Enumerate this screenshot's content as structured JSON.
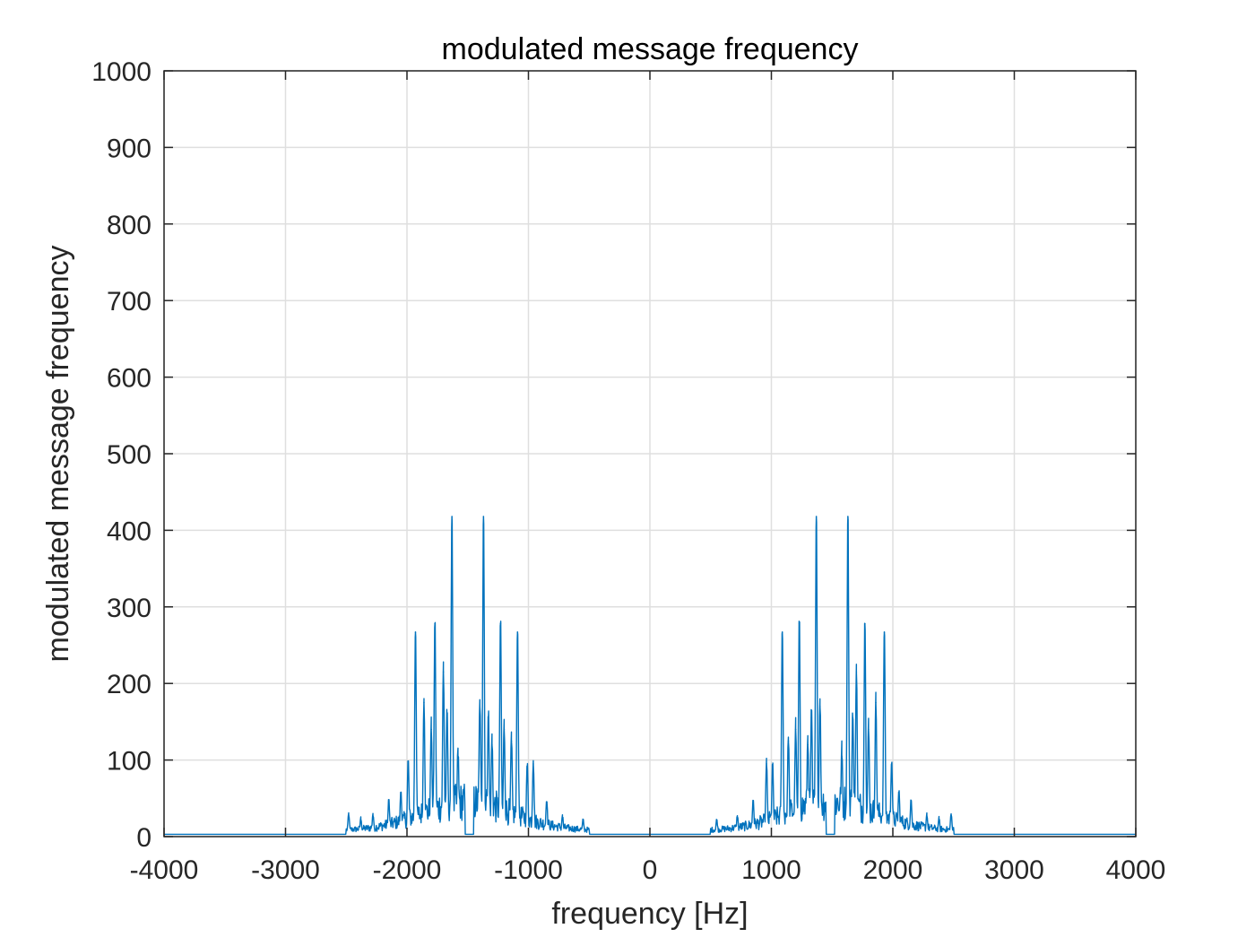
{
  "chart_data": {
    "type": "line",
    "title": "modulated message frequency",
    "xlabel": "frequency [Hz]",
    "ylabel": "modulated message frequency",
    "xlim": [
      -4000,
      4000
    ],
    "ylim": [
      0,
      1000
    ],
    "x_ticks": [
      -4000,
      -3000,
      -2000,
      -1000,
      0,
      1000,
      2000,
      3000,
      4000
    ],
    "y_ticks": [
      0,
      100,
      200,
      300,
      400,
      500,
      600,
      700,
      800,
      900,
      1000
    ],
    "x_tick_labels": [
      "-4000",
      "-3000",
      "-2000",
      "-1000",
      "0",
      "1000",
      "2000",
      "3000",
      "4000"
    ],
    "y_tick_labels": [
      "0",
      "100",
      "200",
      "300",
      "400",
      "500",
      "600",
      "700",
      "800",
      "900",
      "1000"
    ],
    "grid": true,
    "series": [
      {
        "color": "#0072BD",
        "baseline": 3,
        "band_edges": [
          [
            -2500,
            -500
          ],
          [
            500,
            2500
          ]
        ],
        "notch": [
          [
            -1520,
            -1450
          ],
          [
            1450,
            1520
          ]
        ],
        "peaks": [
          {
            "x": -2480,
            "y": 28
          },
          {
            "x": -2380,
            "y": 22
          },
          {
            "x": -2280,
            "y": 27
          },
          {
            "x": -2150,
            "y": 45
          },
          {
            "x": -2050,
            "y": 55
          },
          {
            "x": -1990,
            "y": 95
          },
          {
            "x": -1930,
            "y": 267
          },
          {
            "x": -1860,
            "y": 175
          },
          {
            "x": -1800,
            "y": 140
          },
          {
            "x": -1770,
            "y": 278
          },
          {
            "x": -1700,
            "y": 215
          },
          {
            "x": -1670,
            "y": 155
          },
          {
            "x": -1630,
            "y": 418
          },
          {
            "x": -1580,
            "y": 105
          },
          {
            "x": -1400,
            "y": 170
          },
          {
            "x": -1370,
            "y": 418
          },
          {
            "x": -1330,
            "y": 155
          },
          {
            "x": -1300,
            "y": 120
          },
          {
            "x": -1230,
            "y": 278
          },
          {
            "x": -1200,
            "y": 140
          },
          {
            "x": -1140,
            "y": 125
          },
          {
            "x": -1090,
            "y": 267
          },
          {
            "x": -1010,
            "y": 90
          },
          {
            "x": -960,
            "y": 95
          },
          {
            "x": -850,
            "y": 45
          },
          {
            "x": -720,
            "y": 25
          },
          {
            "x": -550,
            "y": 20
          },
          {
            "x": 550,
            "y": 20
          },
          {
            "x": 720,
            "y": 25
          },
          {
            "x": 850,
            "y": 45
          },
          {
            "x": 960,
            "y": 95
          },
          {
            "x": 1010,
            "y": 90
          },
          {
            "x": 1090,
            "y": 267
          },
          {
            "x": 1140,
            "y": 125
          },
          {
            "x": 1200,
            "y": 140
          },
          {
            "x": 1230,
            "y": 278
          },
          {
            "x": 1300,
            "y": 120
          },
          {
            "x": 1330,
            "y": 155
          },
          {
            "x": 1370,
            "y": 418
          },
          {
            "x": 1400,
            "y": 170
          },
          {
            "x": 1580,
            "y": 105
          },
          {
            "x": 1630,
            "y": 418
          },
          {
            "x": 1670,
            "y": 155
          },
          {
            "x": 1700,
            "y": 215
          },
          {
            "x": 1770,
            "y": 278
          },
          {
            "x": 1800,
            "y": 140
          },
          {
            "x": 1860,
            "y": 175
          },
          {
            "x": 1930,
            "y": 267
          },
          {
            "x": 1990,
            "y": 95
          },
          {
            "x": 2050,
            "y": 55
          },
          {
            "x": 2150,
            "y": 45
          },
          {
            "x": 2280,
            "y": 27
          },
          {
            "x": 2380,
            "y": 22
          },
          {
            "x": 2480,
            "y": 28
          }
        ]
      }
    ]
  }
}
